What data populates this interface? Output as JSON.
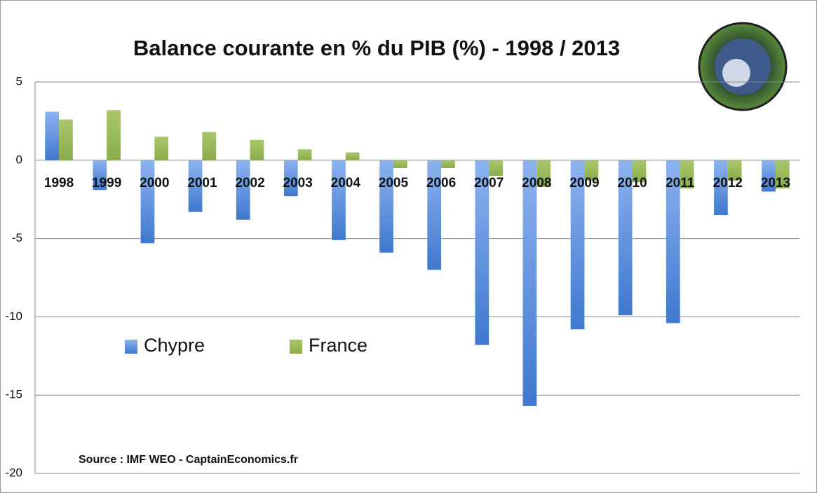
{
  "chart_data": {
    "type": "bar",
    "title": "Balance courante en % du PIB (%)  - 1998 / 2013",
    "source": "Source : IMF WEO - CaptainEconomics.fr",
    "categories": [
      "1998",
      "1999",
      "2000",
      "2001",
      "2002",
      "2003",
      "2004",
      "2005",
      "2006",
      "2007",
      "2008",
      "2009",
      "2010",
      "2011",
      "2012",
      "2013"
    ],
    "series": [
      {
        "name": "Chypre",
        "color": "#5b8fdc",
        "values": [
          3.1,
          -1.9,
          -5.3,
          -3.3,
          -3.8,
          -2.3,
          -5.1,
          -5.9,
          -7.0,
          -11.8,
          -15.7,
          -10.8,
          -9.9,
          -10.4,
          -3.5,
          -2.0
        ]
      },
      {
        "name": "France",
        "color": "#9bbb59",
        "values": [
          2.6,
          3.2,
          1.5,
          1.8,
          1.3,
          0.7,
          0.5,
          -0.5,
          -0.5,
          -1.0,
          -1.7,
          -1.3,
          -1.4,
          -1.8,
          -1.3,
          -1.8
        ]
      }
    ],
    "ylim": [
      -20,
      5
    ],
    "yticks": [
      5,
      0,
      -5,
      -10,
      -15,
      -20
    ],
    "grid": true,
    "legend": "center-left"
  }
}
